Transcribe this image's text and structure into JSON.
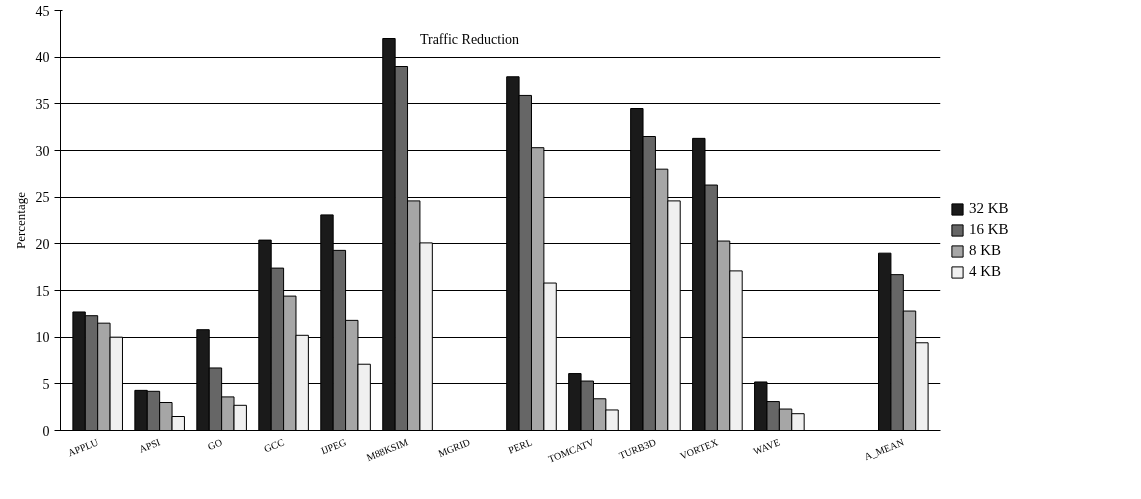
{
  "chart_data": {
    "type": "bar",
    "title": "Traffic Reduction",
    "ylabel": "Percentage",
    "categories": [
      "APPLU",
      "APSI",
      "GO",
      "GCC",
      "IJPEG",
      "M88KSIM",
      "MGRID",
      "PERL",
      "TOMCATV",
      "TURB3D",
      "VORTEX",
      "WAVE",
      null,
      "A_MEAN"
    ],
    "series": [
      {
        "name": "32 KB",
        "color": "#1a1a1a",
        "values": [
          12.7,
          4.3,
          10.8,
          20.4,
          23.1,
          42.0,
          null,
          37.9,
          6.1,
          34.5,
          31.3,
          5.2,
          null,
          19.0
        ]
      },
      {
        "name": "16 KB",
        "color": "#666666",
        "values": [
          12.3,
          4.2,
          6.7,
          17.4,
          19.3,
          39.0,
          null,
          35.9,
          5.3,
          31.5,
          26.3,
          3.1,
          null,
          16.7
        ]
      },
      {
        "name": "8 KB",
        "color": "#a6a6a6",
        "values": [
          11.5,
          3.0,
          3.6,
          14.4,
          11.8,
          24.6,
          null,
          30.3,
          3.4,
          28.0,
          20.3,
          2.3,
          null,
          12.8
        ]
      },
      {
        "name": "4 KB",
        "color": "#f0f0f0",
        "values": [
          10.0,
          1.5,
          2.7,
          10.2,
          7.1,
          20.1,
          null,
          15.8,
          2.2,
          24.6,
          17.1,
          1.8,
          null,
          9.4
        ]
      }
    ],
    "ylim": [
      0,
      45
    ],
    "yticks": [
      0,
      5,
      10,
      15,
      20,
      25,
      30,
      35,
      40,
      45
    ],
    "grid": "y",
    "legend": "right"
  }
}
